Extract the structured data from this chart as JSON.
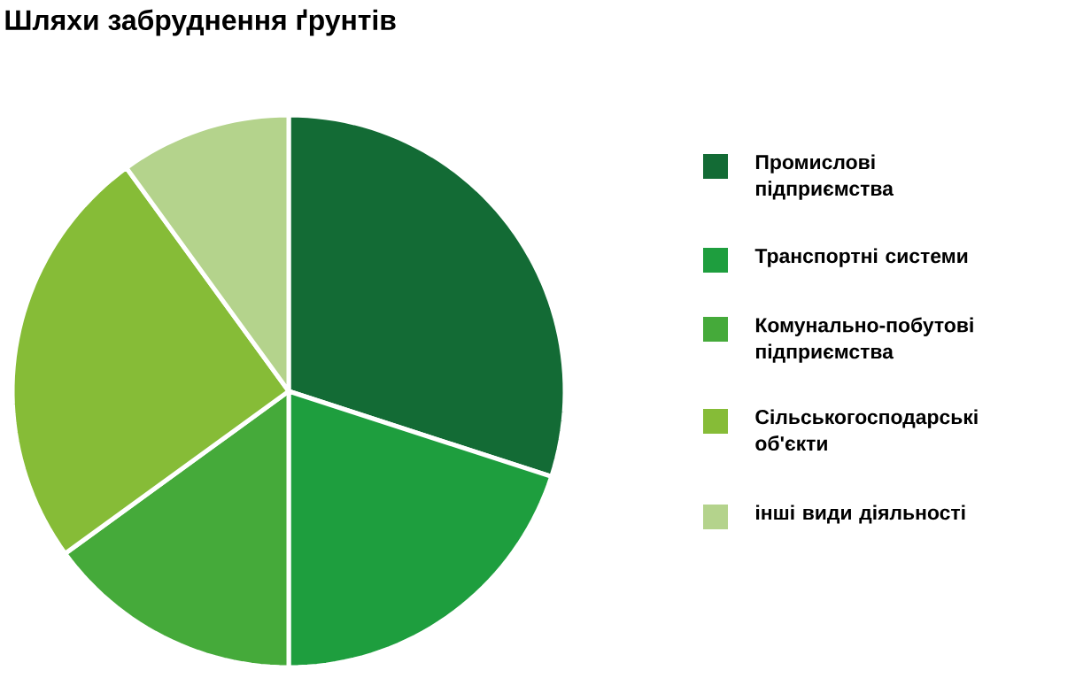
{
  "chart_data": {
    "type": "pie",
    "title": "Шляхи забруднення ґрунтів",
    "categories": [
      "Промислові підприємства",
      "Транспортні системи",
      "Комунально-побутові підприємства",
      "Сільськогосподарські об'єкти",
      "інші види діяльності"
    ],
    "values": [
      30,
      20,
      15,
      25,
      10
    ],
    "colors": [
      "#136b35",
      "#1e9e3e",
      "#45aa3a",
      "#86bc37",
      "#b4d38c"
    ],
    "legend": "right"
  }
}
